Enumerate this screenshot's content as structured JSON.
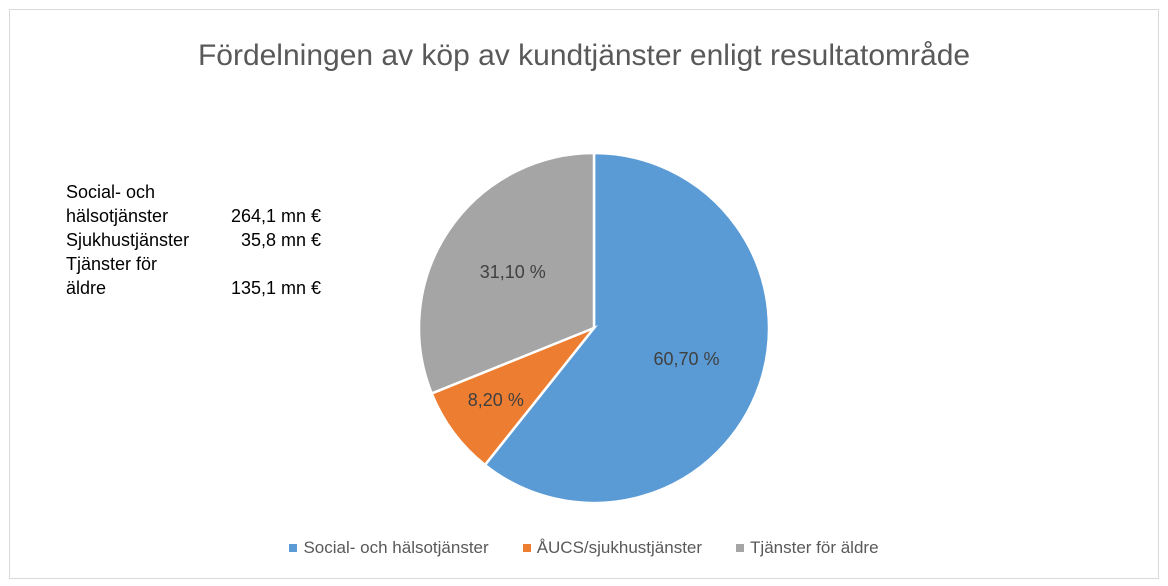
{
  "chart_data": {
    "type": "pie",
    "title": "Fördelningen av köp av kundtjänster enligt resultatområde",
    "categories": [
      "Social- och hälsotjänster",
      "ÅUCS/sjukhustjänster",
      "Tjänster för äldre"
    ],
    "values": [
      60.7,
      8.2,
      31.1
    ],
    "value_labels": [
      "60,70 %",
      "8,20 %",
      "31,10 %"
    ],
    "colors": [
      "#5b9bd5",
      "#ed7d31",
      "#a5a5a5"
    ],
    "legend": "bottom",
    "annotations": [
      {
        "label": "Social- och hälsotjänster",
        "value": "264,1 mn €"
      },
      {
        "label": "Sjukhustjänster",
        "value": "35,8 mn €"
      },
      {
        "label": "Tjänster för äldre",
        "value": "135,1 mn €"
      }
    ]
  }
}
